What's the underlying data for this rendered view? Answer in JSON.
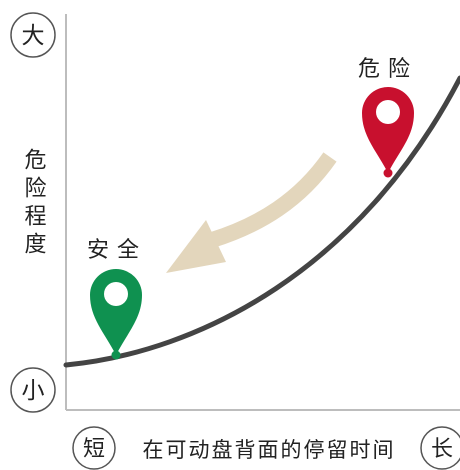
{
  "y_axis": {
    "label": "危险程度",
    "top_marker": "大",
    "bottom_marker": "小"
  },
  "x_axis": {
    "label": "在可动盘背面的停留时间",
    "left_marker": "短",
    "right_marker": "长"
  },
  "points": {
    "safe": {
      "label": "安全",
      "color": "#0f9150"
    },
    "danger": {
      "label": "危险",
      "color": "#c8102e"
    }
  },
  "colors": {
    "axis": "#bdbdbd",
    "curve": "#444444",
    "arrow": "#e3d6bc",
    "marker_circle": "#555555",
    "text": "#222222"
  }
}
